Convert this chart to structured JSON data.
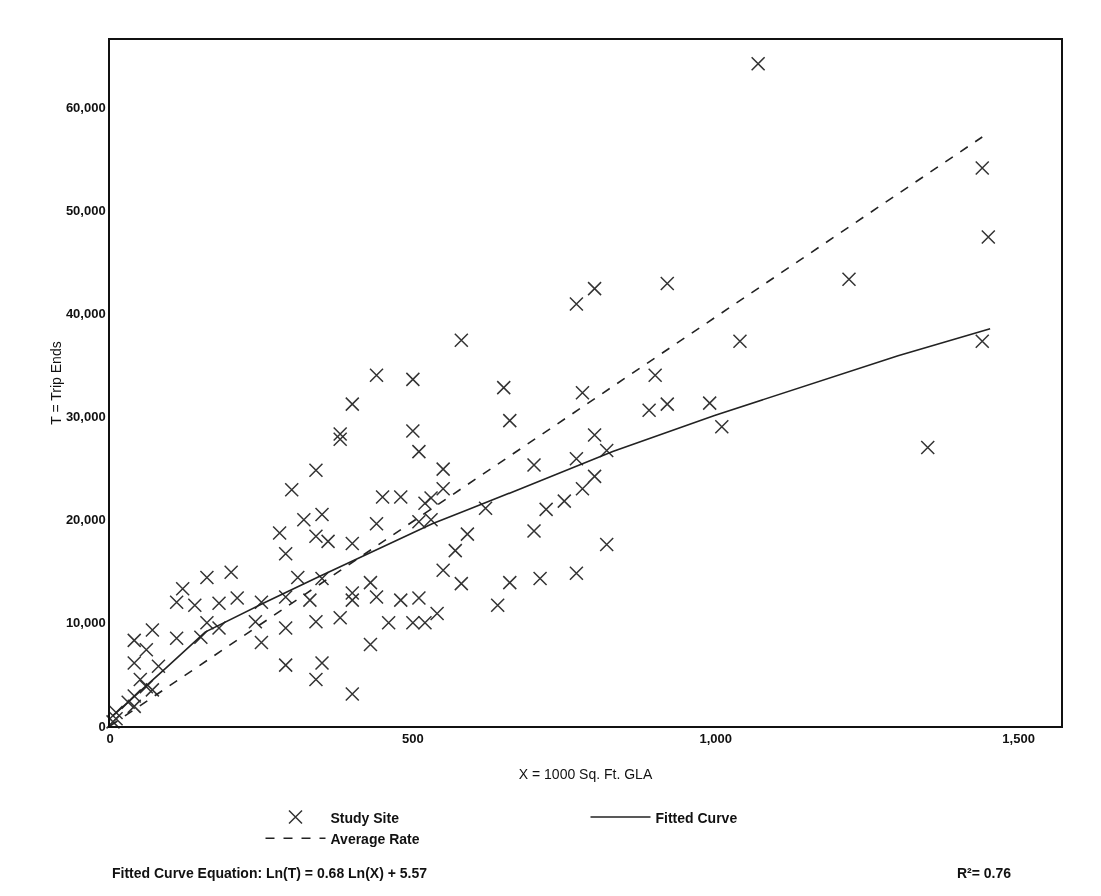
{
  "chart_data": {
    "type": "scatter",
    "xlabel": "X = 1000 Sq. Ft. GLA",
    "ylabel": "T = Trip Ends",
    "xlim": [
      0,
      1570
    ],
    "ylim": [
      0,
      66500
    ],
    "xticks": [
      0,
      500,
      {
        "value": 1000,
        "label": "1,000"
      },
      {
        "value": 1500,
        "label": "1,500"
      }
    ],
    "yticks": [
      0,
      {
        "value": 10000,
        "label": "10,000"
      },
      {
        "value": 20000,
        "label": "20,000"
      },
      {
        "value": 30000,
        "label": "30,000"
      },
      {
        "value": 40000,
        "label": "40,000"
      },
      {
        "value": 50000,
        "label": "50,000"
      },
      {
        "value": 60000,
        "label": "60,000"
      }
    ],
    "grid": false,
    "legend": "bottom",
    "annotations": [
      "Fitted Curve Equation: Ln(T) = 0.68 Ln(X) + 5.57",
      "R²= 0.76"
    ],
    "series": [
      {
        "name": "Study Site",
        "marker": "cross",
        "color": "#333333",
        "x": [
          1070,
          1440,
          1450,
          1220,
          1440,
          1350,
          800,
          770,
          920,
          580,
          1040,
          500,
          650,
          780,
          900,
          660,
          890,
          920,
          990,
          1010,
          500,
          510,
          800,
          820,
          770,
          550,
          700,
          550,
          800,
          780,
          530,
          620,
          720,
          750,
          510,
          530,
          590,
          700,
          570,
          820,
          550,
          580,
          660,
          710,
          770,
          510,
          640,
          540,
          440,
          400,
          380,
          380,
          340,
          300,
          450,
          480,
          520,
          320,
          350,
          440,
          280,
          340,
          360,
          400,
          290,
          120,
          160,
          200,
          310,
          350,
          430,
          110,
          140,
          180,
          210,
          250,
          290,
          330,
          400,
          400,
          440,
          480,
          340,
          380,
          460,
          500,
          520,
          290,
          240,
          160,
          40,
          70,
          110,
          150,
          180,
          60,
          250,
          430,
          40,
          80,
          290,
          350,
          340,
          400,
          50,
          60,
          70,
          40,
          30,
          40,
          10,
          10,
          5
        ],
        "values": [
          64200,
          54100,
          47400,
          43300,
          37300,
          27000,
          42400,
          40900,
          42900,
          37400,
          37300,
          33600,
          32800,
          32300,
          34000,
          29600,
          30600,
          31200,
          31300,
          29000,
          28600,
          26600,
          28200,
          26700,
          25900,
          24900,
          25300,
          23000,
          24200,
          23000,
          22100,
          21100,
          21000,
          21800,
          19800,
          20000,
          18600,
          18900,
          17000,
          17600,
          15100,
          13800,
          13900,
          14300,
          14800,
          12400,
          11700,
          10900,
          34000,
          31200,
          28300,
          27800,
          24800,
          22900,
          22200,
          22200,
          21600,
          20000,
          20500,
          19600,
          18700,
          18400,
          17900,
          17700,
          16700,
          13300,
          14400,
          14900,
          14400,
          14300,
          13900,
          12000,
          11700,
          11900,
          12400,
          12000,
          12500,
          12200,
          12900,
          12200,
          12500,
          12200,
          10100,
          10500,
          10000,
          10000,
          10000,
          9500,
          10100,
          10000,
          8300,
          9300,
          8500,
          8600,
          9500,
          7400,
          8100,
          7900,
          6100,
          5800,
          5900,
          6100,
          4500,
          3100,
          4500,
          3800,
          3500,
          2900,
          2300,
          1900,
          1300,
          700,
          400
        ]
      },
      {
        "name": "Fitted Curve",
        "type": "line",
        "line_style": "solid",
        "color": "#222222",
        "x": [
          5,
          94,
          157,
          253,
          342,
          532,
          678,
          830,
          998,
          1301,
          1453
        ],
        "values": [
          1000,
          5700,
          9100,
          11900,
          14400,
          19600,
          23000,
          26600,
          30100,
          35900,
          38500
        ]
      },
      {
        "name": "Average Rate",
        "type": "line",
        "line_style": "dashed",
        "color": "#222222",
        "x": [
          0,
          1440
        ],
        "values": [
          0,
          57100
        ]
      }
    ]
  }
}
